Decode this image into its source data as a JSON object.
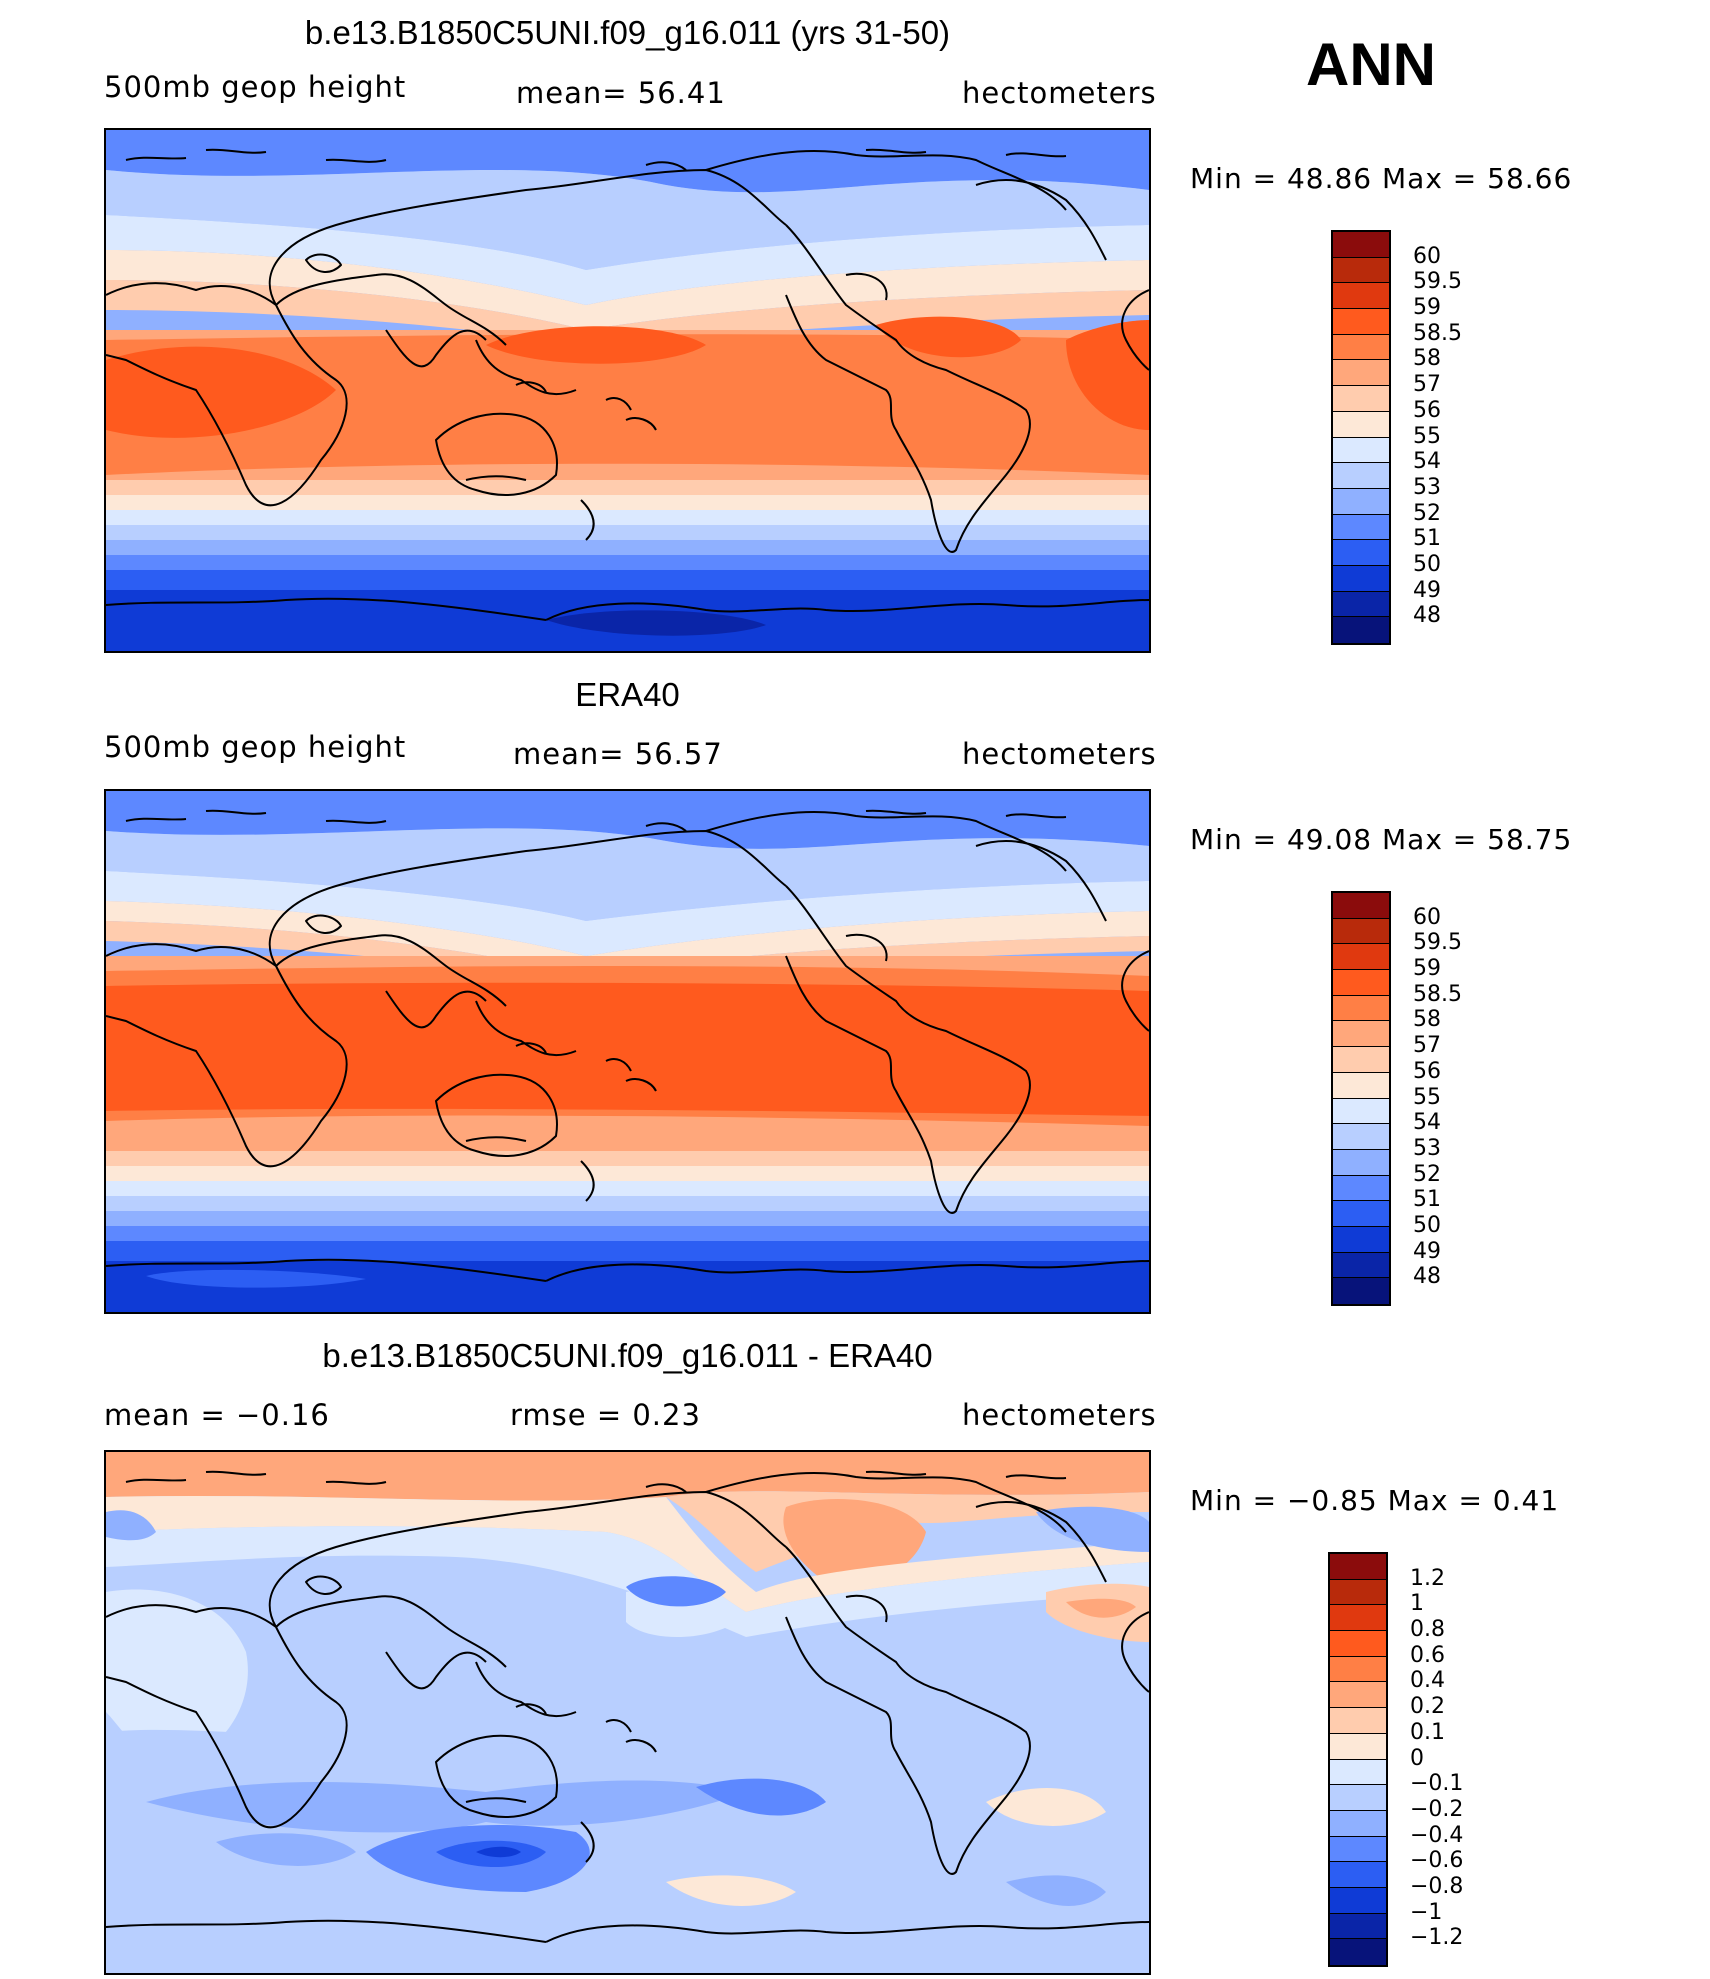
{
  "season": "ANN",
  "panels": [
    {
      "title": "b.e13.B1850C5UNI.f09_g16.011 (yrs 31-50)",
      "left_label": "500mb geop height",
      "mid_label": "mean=   56.41",
      "units": "hectometers",
      "minmax": "Min =   48.86 Max =   58.66",
      "levels": [
        "60",
        "59.5",
        "59",
        "58.5",
        "58",
        "57",
        "56",
        "55",
        "54",
        "53",
        "52",
        "51",
        "50",
        "49",
        "48"
      ],
      "colors": [
        "#8b0c0c",
        "#b82a0b",
        "#e0390f",
        "#ff5a1e",
        "#ff7f45",
        "#ffa77b",
        "#ffccae",
        "#fde8d7",
        "#dbe9ff",
        "#b8cfff",
        "#8fb0ff",
        "#5d88ff",
        "#2c5ef3",
        "#0f3bd6",
        "#0a25a8",
        "#07137a"
      ]
    },
    {
      "title": "ERA40",
      "left_label": "500mb geop height",
      "mid_label": "mean=   56.57",
      "units": "hectometers",
      "minmax": "Min =   49.08 Max =   58.75",
      "levels": [
        "60",
        "59.5",
        "59",
        "58.5",
        "58",
        "57",
        "56",
        "55",
        "54",
        "53",
        "52",
        "51",
        "50",
        "49",
        "48"
      ],
      "colors": [
        "#8b0c0c",
        "#b82a0b",
        "#e0390f",
        "#ff5a1e",
        "#ff7f45",
        "#ffa77b",
        "#ffccae",
        "#fde8d7",
        "#dbe9ff",
        "#b8cfff",
        "#8fb0ff",
        "#5d88ff",
        "#2c5ef3",
        "#0f3bd6",
        "#0a25a8",
        "#07137a"
      ]
    },
    {
      "title": "b.e13.B1850C5UNI.f09_g16.011 - ERA40",
      "left_label": "mean =   −0.16",
      "mid_label": "rmse =    0.23",
      "units": "hectometers",
      "minmax": "Min =   −0.85 Max =    0.41",
      "levels": [
        "1.2",
        "1",
        "0.8",
        "0.6",
        "0.4",
        "0.2",
        "0.1",
        "0",
        "−0.1",
        "−0.2",
        "−0.4",
        "−0.6",
        "−0.8",
        "−1",
        "−1.2"
      ],
      "colors": [
        "#8b0c0c",
        "#b82a0b",
        "#e0390f",
        "#ff5a1e",
        "#ff7f45",
        "#ffa77b",
        "#ffccae",
        "#fde8d7",
        "#dbe9ff",
        "#b8cfff",
        "#8fb0ff",
        "#5d88ff",
        "#2c5ef3",
        "#0f3bd6",
        "#0a25a8",
        "#07137a"
      ]
    }
  ]
}
